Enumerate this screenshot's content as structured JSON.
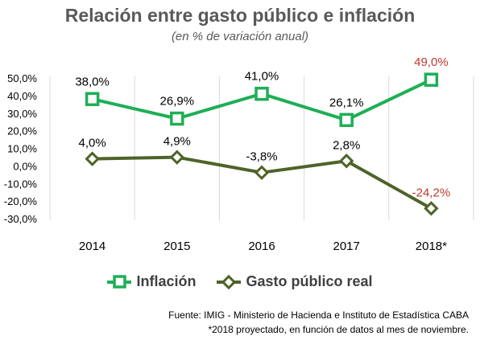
{
  "title": "Relación entre gasto público e inflación",
  "subtitle": "(en % de variación anual)",
  "colors": {
    "inflation": "#1fae57",
    "gasto": "#4f6228",
    "negative_label": "#c0392b",
    "axis_text": "#000000",
    "grid": "#d9d9d9"
  },
  "chart_data": {
    "type": "line",
    "categories": [
      "2014",
      "2015",
      "2016",
      "2017",
      "2018*"
    ],
    "ylim": [
      -30,
      50
    ],
    "yticks": [
      "-30,0%",
      "-20,0%",
      "-10,0%",
      "0,0%",
      "10,0%",
      "20,0%",
      "30,0%",
      "40,0%",
      "50,0%"
    ],
    "series": [
      {
        "name": "Inflación",
        "values": [
          38.0,
          26.9,
          41.0,
          26.1,
          49.0
        ],
        "labels": [
          "38,0%",
          "26,9%",
          "41,0%",
          "26,1%",
          "49,0%"
        ]
      },
      {
        "name": "Gasto público real",
        "values": [
          4.0,
          4.9,
          -3.8,
          2.8,
          -24.2
        ],
        "labels": [
          "4,0%",
          "4,9%",
          "-3,8%",
          "2,8%",
          "-24,2%"
        ]
      }
    ]
  },
  "source": {
    "line1": "Fuente: IMIG - Ministerio de Hacienda e Instituto de Estadística CABA",
    "line2": "*2018 proyectado, en función de datos al mes de noviembre."
  }
}
